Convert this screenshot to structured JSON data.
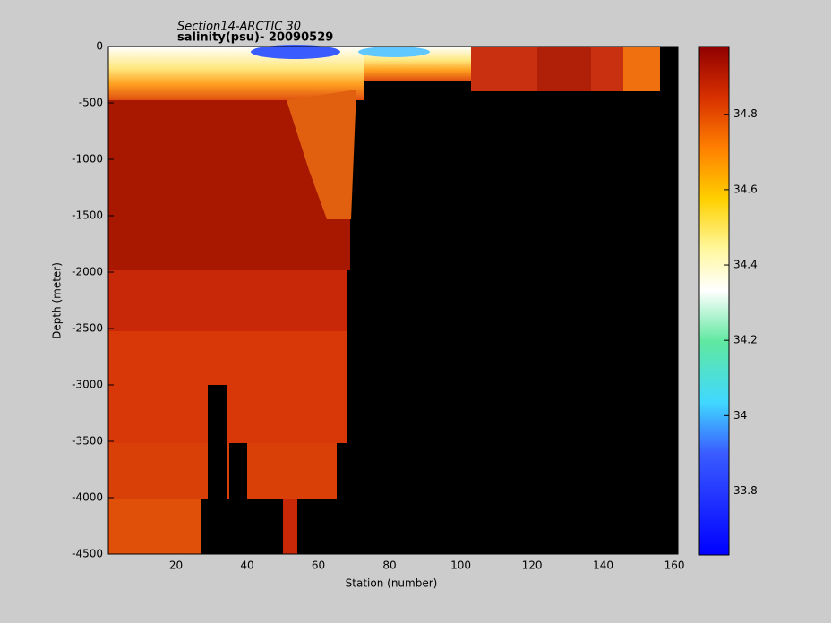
{
  "chart_data": {
    "type": "heatmap",
    "title": "Section14-ARCTIC 30",
    "subtitle": "salinity(psu)- 20090529",
    "x_label": "Station (number)",
    "y_label": "Depth (meter)",
    "xlim": [
      1,
      161
    ],
    "xticks": [
      20,
      40,
      60,
      80,
      100,
      120,
      140,
      160
    ],
    "ylim": [
      -4500,
      0
    ],
    "yticks": [
      0,
      -500,
      -1000,
      -1500,
      -2000,
      -2500,
      -3000,
      -3500,
      -4000,
      -4500
    ],
    "clim": [
      33.63,
      34.98
    ],
    "cticks": [
      33.8,
      34,
      34.2,
      34.4,
      34.6,
      34.8
    ],
    "colormap": "jet"
  }
}
